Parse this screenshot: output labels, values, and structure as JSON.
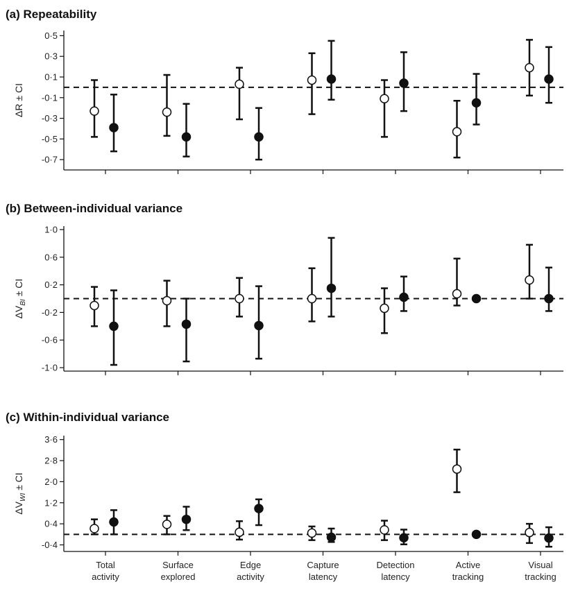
{
  "colors": {
    "ink": "#111111",
    "open_marker_fill": "#ffffff",
    "filled_marker_fill": "#111111",
    "background": "#ffffff"
  },
  "legend": "none",
  "chart_data": [
    {
      "type": "scatter",
      "title": "(a) Repeatability",
      "ylabel": "ΔR ± CI",
      "ylabel_main": "ΔR ± CI",
      "ylabel_sub": "",
      "ylabel_tail": "",
      "ylim": [
        -0.8,
        0.55
      ],
      "yticks": [
        0.5,
        0.3,
        0.1,
        -0.1,
        -0.3,
        -0.5,
        -0.7
      ],
      "ytick_labels": [
        "0·5",
        "0·3",
        "0·1",
        "-0·1",
        "-0·3",
        "-0·5",
        "-0·7"
      ],
      "reference_line": 0,
      "grid": false,
      "series": [
        {
          "marker": "open",
          "values": [
            -0.23,
            -0.24,
            0.03,
            0.07,
            -0.11,
            -0.43,
            0.19
          ],
          "lower": [
            -0.48,
            -0.47,
            -0.31,
            -0.26,
            -0.48,
            -0.68,
            -0.08
          ],
          "upper": [
            0.07,
            0.12,
            0.19,
            0.33,
            0.07,
            -0.13,
            0.46
          ]
        },
        {
          "marker": "filled",
          "values": [
            -0.39,
            -0.48,
            -0.48,
            0.08,
            0.04,
            -0.15,
            0.08
          ],
          "lower": [
            -0.62,
            -0.67,
            -0.7,
            -0.12,
            -0.23,
            -0.36,
            -0.15
          ],
          "upper": [
            -0.07,
            -0.16,
            -0.2,
            0.45,
            0.34,
            0.13,
            0.39
          ]
        }
      ]
    },
    {
      "type": "scatter",
      "title": "(b) Between-individual variance",
      "ylabel": "ΔVBI ± CI",
      "ylabel_main": "ΔV",
      "ylabel_sub": "BI",
      "ylabel_tail": " ± CI",
      "ylim": [
        -1.05,
        1.05
      ],
      "yticks": [
        1.0,
        0.6,
        0.2,
        -0.2,
        -0.6,
        -1.0
      ],
      "ytick_labels": [
        "1·0",
        "0·6",
        "0·2",
        "-0·2",
        "-0·6",
        "-1·0"
      ],
      "reference_line": 0,
      "grid": false,
      "series": [
        {
          "marker": "open",
          "values": [
            -0.1,
            -0.03,
            0.0,
            0.0,
            -0.14,
            0.07,
            0.27
          ],
          "lower": [
            -0.4,
            -0.4,
            -0.26,
            -0.33,
            -0.5,
            -0.1,
            0.0
          ],
          "upper": [
            0.17,
            0.26,
            0.3,
            0.44,
            0.15,
            0.58,
            0.78
          ]
        },
        {
          "marker": "filled",
          "values": [
            -0.4,
            -0.37,
            -0.39,
            0.15,
            0.02,
            0.0,
            0.0
          ],
          "lower": [
            -0.96,
            -0.91,
            -0.87,
            -0.26,
            -0.18,
            0.0,
            -0.18
          ],
          "upper": [
            0.12,
            0.0,
            0.18,
            0.88,
            0.32,
            0.0,
            0.45
          ]
        }
      ]
    },
    {
      "type": "scatter",
      "title": "(c) Within-individual variance",
      "ylabel": "ΔVWI ± CI",
      "ylabel_main": "ΔV",
      "ylabel_sub": "WI",
      "ylabel_tail": " ± CI",
      "ylim": [
        -0.65,
        3.75
      ],
      "yticks": [
        3.6,
        2.8,
        2.0,
        1.2,
        0.4,
        -0.4
      ],
      "ytick_labels": [
        "3·6",
        "2·8",
        "2·0",
        "1·2",
        "0·4",
        "-0·4"
      ],
      "reference_line": 0,
      "grid": false,
      "categories": [
        "Total activity",
        "Surface explored",
        "Edge activity",
        "Capture latency",
        "Detection latency",
        "Active tracking",
        "Visual tracking"
      ],
      "category_lines": [
        [
          "Total",
          "activity"
        ],
        [
          "Surface",
          "explored"
        ],
        [
          "Edge",
          "activity"
        ],
        [
          "Capture",
          "latency"
        ],
        [
          "Detection",
          "latency"
        ],
        [
          "Active",
          "tracking"
        ],
        [
          "Visual",
          "tracking"
        ]
      ],
      "series": [
        {
          "marker": "open",
          "values": [
            0.22,
            0.38,
            0.08,
            0.05,
            0.17,
            2.48,
            0.07
          ],
          "lower": [
            0.0,
            0.0,
            -0.2,
            -0.22,
            -0.22,
            1.6,
            -0.33
          ],
          "upper": [
            0.57,
            0.7,
            0.5,
            0.3,
            0.52,
            3.22,
            0.4
          ]
        },
        {
          "marker": "filled",
          "values": [
            0.47,
            0.57,
            0.98,
            -0.11,
            -0.13,
            0.0,
            -0.14
          ],
          "lower": [
            0.0,
            0.16,
            0.35,
            -0.29,
            -0.38,
            0.0,
            -0.47
          ],
          "upper": [
            0.92,
            1.05,
            1.33,
            0.22,
            0.18,
            0.0,
            0.27
          ]
        }
      ]
    }
  ]
}
